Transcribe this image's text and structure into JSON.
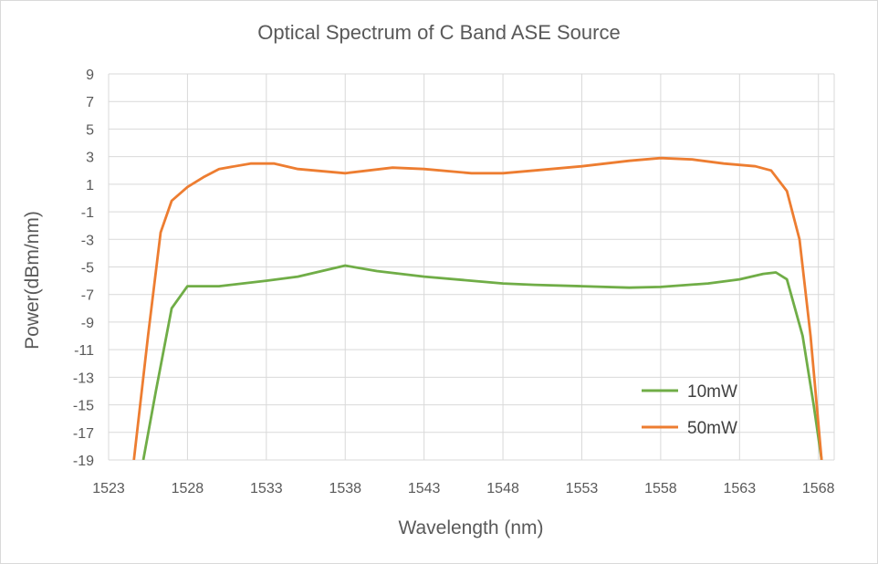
{
  "chart_data": {
    "type": "line",
    "title": "Optical Spectrum of C Band ASE  Source",
    "xlabel": "Wavelength (nm)",
    "ylabel": "Power(dBm/nm)",
    "xlim": [
      1523,
      1569
    ],
    "ylim": [
      -19,
      9
    ],
    "x_ticks": [
      "1523",
      "1528",
      "1533",
      "1538",
      "1543",
      "1548",
      "1553",
      "1558",
      "1563",
      "1568"
    ],
    "y_ticks": [
      "9",
      "7",
      "5",
      "3",
      "1",
      "-1",
      "-3",
      "-5",
      "-7",
      "-9",
      "-11",
      "-13",
      "-15",
      "-17",
      "-19"
    ],
    "grid": true,
    "legend_position": "bottom-right",
    "series": [
      {
        "name": "10mW",
        "color": "#70ad47",
        "points": [
          [
            1525.2,
            -19
          ],
          [
            1526,
            -14
          ],
          [
            1527,
            -8
          ],
          [
            1528,
            -6.4
          ],
          [
            1530,
            -6.4
          ],
          [
            1533,
            -6.0
          ],
          [
            1535,
            -5.7
          ],
          [
            1538,
            -4.9
          ],
          [
            1540,
            -5.3
          ],
          [
            1543,
            -5.7
          ],
          [
            1546,
            -6.0
          ],
          [
            1548,
            -6.2
          ],
          [
            1550,
            -6.3
          ],
          [
            1553,
            -6.4
          ],
          [
            1556,
            -6.5
          ],
          [
            1558,
            -6.45
          ],
          [
            1561,
            -6.2
          ],
          [
            1563,
            -5.9
          ],
          [
            1564.5,
            -5.5
          ],
          [
            1565.3,
            -5.4
          ],
          [
            1566,
            -5.9
          ],
          [
            1567,
            -10
          ],
          [
            1567.7,
            -15
          ],
          [
            1568.2,
            -19
          ]
        ]
      },
      {
        "name": "50mW",
        "color": "#ed7d31",
        "points": [
          [
            1524.6,
            -19
          ],
          [
            1525.5,
            -10
          ],
          [
            1526.3,
            -2.5
          ],
          [
            1527,
            -0.2
          ],
          [
            1528,
            0.8
          ],
          [
            1529,
            1.5
          ],
          [
            1530,
            2.1
          ],
          [
            1532,
            2.5
          ],
          [
            1533.5,
            2.5
          ],
          [
            1535,
            2.1
          ],
          [
            1538,
            1.8
          ],
          [
            1541,
            2.2
          ],
          [
            1543,
            2.1
          ],
          [
            1546,
            1.8
          ],
          [
            1548,
            1.8
          ],
          [
            1550,
            2.0
          ],
          [
            1553,
            2.3
          ],
          [
            1556,
            2.7
          ],
          [
            1558,
            2.9
          ],
          [
            1560,
            2.8
          ],
          [
            1562,
            2.5
          ],
          [
            1564,
            2.3
          ],
          [
            1565,
            2.0
          ],
          [
            1566,
            0.5
          ],
          [
            1566.8,
            -3
          ],
          [
            1567.5,
            -10
          ],
          [
            1568.2,
            -19
          ]
        ]
      }
    ]
  }
}
